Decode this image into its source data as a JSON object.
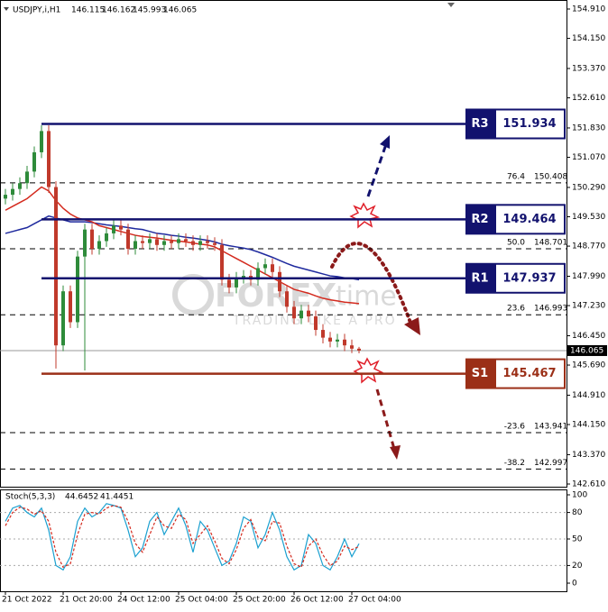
{
  "chart_data": {
    "type": "candlestick",
    "symbol": "USDJPY,i,H1",
    "categories": [
      "21 Oct 2022",
      null,
      null,
      null,
      null,
      null,
      null,
      null,
      "21 Oct 20:00",
      null,
      null,
      null,
      null,
      null,
      null,
      null,
      "24 Oct 12:00",
      null,
      null,
      null,
      null,
      null,
      null,
      null,
      "25 Oct 04:00",
      null,
      null,
      null,
      null,
      null,
      null,
      null,
      "25 Oct 20:00",
      null,
      null,
      null,
      null,
      null,
      null,
      null,
      "26 Oct 12:00",
      null,
      null,
      null,
      null,
      null,
      null,
      null,
      "27 Oct 04:00",
      null
    ],
    "open": [
      150.0,
      150.1,
      150.25,
      150.4,
      150.7,
      151.2,
      151.75,
      150.3,
      146.2,
      147.6,
      146.8,
      148.5,
      149.2,
      148.7,
      148.9,
      149.1,
      149.3,
      149.2,
      148.7,
      148.9,
      148.85,
      148.95,
      148.8,
      148.9,
      148.85,
      148.95,
      148.9,
      148.8,
      148.9,
      148.85,
      148.8,
      147.9,
      147.7,
      147.95,
      148.0,
      147.9,
      148.2,
      148.3,
      148.1,
      147.6,
      147.2,
      146.9,
      147.1,
      146.95,
      146.6,
      146.4,
      146.3,
      146.35,
      146.2,
      146.115
    ],
    "high": [
      150.25,
      150.4,
      150.55,
      150.85,
      151.35,
      151.9,
      151.9,
      150.45,
      147.75,
      147.75,
      148.65,
      149.35,
      149.35,
      149.05,
      149.25,
      149.45,
      149.45,
      149.35,
      149.05,
      149.05,
      149.1,
      149.1,
      149.05,
      149.05,
      149.1,
      149.1,
      149.05,
      149.05,
      149.05,
      149.0,
      148.95,
      148.05,
      148.1,
      148.15,
      148.15,
      148.35,
      148.45,
      148.45,
      148.25,
      147.75,
      147.35,
      147.25,
      147.25,
      147.1,
      146.75,
      146.55,
      146.5,
      146.5,
      146.35,
      146.162
    ],
    "low": [
      149.85,
      149.95,
      150.1,
      150.25,
      150.55,
      151.05,
      150.15,
      145.6,
      146.05,
      146.65,
      146.65,
      145.55,
      148.55,
      148.55,
      148.75,
      148.95,
      149.05,
      148.55,
      148.55,
      148.7,
      148.7,
      148.65,
      148.65,
      148.7,
      148.7,
      148.75,
      148.65,
      148.65,
      148.7,
      148.65,
      147.75,
      147.55,
      147.55,
      147.8,
      147.75,
      147.75,
      148.05,
      147.95,
      147.45,
      147.05,
      146.75,
      146.75,
      146.8,
      146.45,
      146.25,
      146.15,
      146.15,
      146.05,
      146.0,
      145.993
    ],
    "close": [
      150.1,
      150.25,
      150.4,
      150.7,
      151.2,
      151.75,
      150.3,
      146.2,
      147.6,
      146.8,
      148.5,
      149.2,
      148.7,
      148.9,
      149.1,
      149.3,
      149.2,
      148.7,
      148.9,
      148.85,
      148.95,
      148.8,
      148.9,
      148.85,
      148.95,
      148.9,
      148.8,
      148.9,
      148.85,
      148.8,
      147.9,
      147.7,
      147.95,
      148.0,
      147.9,
      148.2,
      148.3,
      148.1,
      147.6,
      147.2,
      146.9,
      147.1,
      146.95,
      146.6,
      146.4,
      146.3,
      146.35,
      146.2,
      146.115,
      146.065
    ],
    "bull_color": "#2e8b3a",
    "bear_color": "#c0392b",
    "series": [
      {
        "color": "#1f2a9e",
        "values": [
          149.1,
          149.15,
          149.2,
          149.25,
          149.35,
          149.45,
          149.55,
          149.5,
          149.45,
          149.4,
          149.4,
          149.4,
          149.38,
          149.35,
          149.32,
          149.3,
          149.28,
          149.25,
          149.22,
          149.2,
          149.15,
          149.1,
          149.08,
          149.05,
          149.03,
          149.0,
          148.98,
          148.95,
          148.92,
          148.88,
          148.82,
          148.78,
          148.75,
          148.72,
          148.68,
          148.62,
          148.55,
          148.48,
          148.4,
          148.32,
          148.25,
          148.2,
          148.15,
          148.1,
          148.05,
          148.0,
          147.98,
          147.95,
          147.93,
          147.9
        ]
      },
      {
        "color": "#d42a1e",
        "values": [
          149.7,
          149.8,
          149.9,
          150.0,
          150.15,
          150.3,
          150.2,
          149.95,
          149.75,
          149.6,
          149.5,
          149.45,
          149.4,
          149.3,
          149.25,
          149.2,
          149.15,
          149.1,
          149.05,
          149.02,
          149.0,
          148.98,
          148.95,
          148.92,
          148.9,
          148.88,
          148.85,
          148.82,
          148.8,
          148.75,
          148.65,
          148.55,
          148.45,
          148.35,
          148.25,
          148.15,
          148.05,
          147.95,
          147.85,
          147.75,
          147.65,
          147.6,
          147.55,
          147.48,
          147.42,
          147.38,
          147.35,
          147.32,
          147.3,
          147.28
        ]
      }
    ],
    "ylim": [
      142.61,
      154.91
    ],
    "yticks": [
      {
        "value": 154.91,
        "label": "154.910"
      },
      {
        "value": 154.15,
        "label": "154.150"
      },
      {
        "value": 153.37,
        "label": "153.370"
      },
      {
        "value": 152.61,
        "label": "152.610"
      },
      {
        "value": 151.83,
        "label": "151.830"
      },
      {
        "value": 151.07,
        "label": "151.070"
      },
      {
        "value": 150.29,
        "label": "150.290"
      },
      {
        "value": 149.53,
        "label": "149.530"
      },
      {
        "value": 148.77,
        "label": "148.770"
      },
      {
        "value": 147.99,
        "label": "147.990"
      },
      {
        "value": 147.23,
        "label": "147.230"
      },
      {
        "value": 146.45,
        "label": "146.450"
      },
      {
        "value": 145.69,
        "label": "145.690"
      },
      {
        "value": 144.91,
        "label": "144.910"
      },
      {
        "value": 144.15,
        "label": "144.150"
      },
      {
        "value": 143.37,
        "label": "143.370"
      },
      {
        "value": 142.61,
        "label": "142.610"
      }
    ],
    "levels": [
      {
        "name": "R3",
        "value": 151.934,
        "color": "#12126e"
      },
      {
        "name": "R2",
        "value": 149.464,
        "color": "#12126e"
      },
      {
        "name": "R1",
        "value": 147.937,
        "color": "#12126e"
      },
      {
        "name": "S1",
        "value": 145.467,
        "color": "#9b2f17"
      }
    ],
    "fib_levels": [
      {
        "ratio": "76.4",
        "value": 150.408
      },
      {
        "ratio": "50.0",
        "value": 148.701
      },
      {
        "ratio": "23.6",
        "value": 146.993
      },
      {
        "ratio": "-23.6",
        "value": 143.941
      },
      {
        "ratio": "-38.2",
        "value": 142.997
      }
    ],
    "watermark": {
      "brand": "FOREX",
      "brand_suffix": "time",
      "tagline": "TRADING LIKE A PRO"
    },
    "oscillator": {
      "title": "Stoch(5,3,3)",
      "main": {
        "color": "#1aa0d0",
        "values": [
          70,
          85,
          88,
          80,
          75,
          85,
          60,
          20,
          15,
          30,
          70,
          85,
          75,
          80,
          90,
          88,
          85,
          60,
          30,
          40,
          70,
          80,
          55,
          70,
          85,
          65,
          35,
          70,
          60,
          40,
          20,
          25,
          45,
          75,
          70,
          40,
          55,
          80,
          60,
          30,
          15,
          20,
          55,
          45,
          20,
          15,
          30,
          50,
          30,
          44.6452
        ]
      },
      "signal": {
        "color": "#d42a1e",
        "values": [
          65,
          80,
          86,
          84,
          78,
          82,
          70,
          35,
          18,
          22,
          55,
          78,
          80,
          78,
          85,
          88,
          86,
          70,
          45,
          35,
          55,
          75,
          65,
          62,
          78,
          72,
          45,
          55,
          65,
          48,
          28,
          22,
          38,
          62,
          72,
          52,
          48,
          70,
          68,
          42,
          22,
          18,
          42,
          50,
          32,
          20,
          25,
          42,
          38,
          41.4451
        ]
      },
      "ylim": [
        0,
        100
      ],
      "yticks": [
        100,
        80,
        50,
        20,
        0
      ],
      "levels": [
        80,
        50,
        20
      ]
    }
  }
}
